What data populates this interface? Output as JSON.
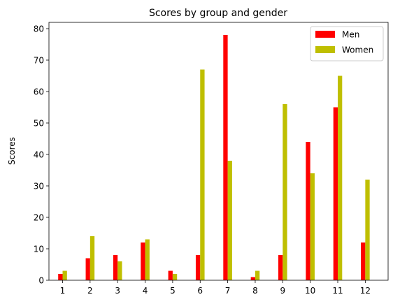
{
  "chart_data": {
    "type": "bar",
    "title": "Scores by group and gender",
    "xlabel": "",
    "ylabel": "Scores",
    "categories": [
      "1",
      "2",
      "3",
      "4",
      "5",
      "6",
      "7",
      "8",
      "9",
      "10",
      "11",
      "12"
    ],
    "series": [
      {
        "name": "Men",
        "color": "#ff0000",
        "values": [
          2,
          7,
          8,
          12,
          3,
          8,
          78,
          1,
          8,
          44,
          55,
          12
        ]
      },
      {
        "name": "Women",
        "color": "#bfbf00",
        "values": [
          3,
          14,
          6,
          13,
          2,
          67,
          38,
          3,
          56,
          34,
          65,
          32
        ]
      }
    ],
    "ylim": [
      0,
      82
    ],
    "yticks": [
      0,
      10,
      20,
      30,
      40,
      50,
      60,
      70,
      80
    ],
    "grid": false,
    "legend_position": "top-right"
  }
}
